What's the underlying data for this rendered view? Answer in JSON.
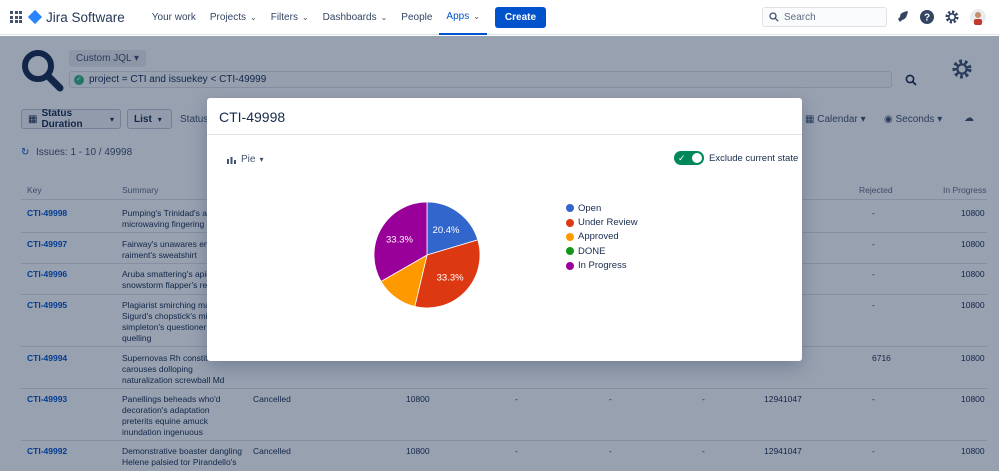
{
  "nav": {
    "brand": "Jira Software",
    "items": [
      {
        "label": "Your work",
        "has_menu": false
      },
      {
        "label": "Projects",
        "has_menu": true
      },
      {
        "label": "Filters",
        "has_menu": true
      },
      {
        "label": "Dashboards",
        "has_menu": true
      },
      {
        "label": "People",
        "has_menu": false
      },
      {
        "label": "Apps",
        "has_menu": true,
        "active": true
      }
    ],
    "create_label": "Create",
    "search_placeholder": "Search",
    "icons": [
      "notifications-icon",
      "help-icon",
      "settings-icon",
      "user-avatar"
    ],
    "accent_color": "#0052CC"
  },
  "background": {
    "jql_mode": "Custom JQL",
    "jql_query": "project = CTI and issuekey < CTI-49999",
    "toolbar": {
      "status_duration": "Status Duration",
      "view_mode": "List",
      "statuses_label": "Statuses",
      "calendar": "Calendar",
      "seconds": "Seconds"
    },
    "issues_count": "Issues: 1 - 10 / 49998",
    "columns": {
      "key": "Key",
      "summary": "Summary",
      "rejected": "Rejected",
      "in_progress": "In Progress"
    },
    "rows": [
      {
        "key": "CTI-49998",
        "summary": "Pumping's Trinidad's artsi microwaving fingering im",
        "status": "",
        "c1": "",
        "c2": "",
        "c3": "",
        "c4": "",
        "c5": "",
        "rejected": "-",
        "in_progress": "10800"
      },
      {
        "key": "CTI-49997",
        "summary": "Fairway's unawares emari tote raiment's sweatshirt",
        "status": "",
        "c1": "",
        "c2": "",
        "c3": "",
        "c4": "",
        "c5": "",
        "rejected": "-",
        "in_progress": "10800"
      },
      {
        "key": "CTI-49996",
        "summary": "Aruba smattering's apient snowstorm flapper's reev",
        "status": "",
        "c1": "",
        "c2": "",
        "c3": "",
        "c4": "",
        "c5": "",
        "rejected": "-",
        "in_progress": "10800"
      },
      {
        "key": "CTI-49995",
        "summary": "Plagiarist smirching maun Sigurd's chopstick's misch simpleton's questioner W quelling",
        "status": "",
        "c1": "",
        "c2": "",
        "c3": "",
        "c4": "",
        "c5": "",
        "rejected": "-",
        "in_progress": "10800"
      },
      {
        "key": "CTI-49994",
        "summary": "Supernovas Rh constituti carouses dolloping naturalization screwball Md",
        "status": "",
        "c1": "",
        "c2": "",
        "c3": "",
        "c4": "",
        "c5": "",
        "rejected": "6716",
        "in_progress": "10800"
      },
      {
        "key": "CTI-49993",
        "summary": "Panellings beheads who'd decoration's adaptation preterits equine amuck inundation ingenuous",
        "status": "Cancelled",
        "c1": "10800",
        "c2": "-",
        "c3": "-",
        "c4": "-",
        "c5": "12941047",
        "rejected": "-",
        "in_progress": "10800"
      },
      {
        "key": "CTI-49992",
        "summary": "Demonstrative boaster dangling Helene palsied tor Pirandello's",
        "status": "Cancelled",
        "c1": "10800",
        "c2": "-",
        "c3": "-",
        "c4": "-",
        "c5": "12941047",
        "rejected": "-",
        "in_progress": "10800"
      }
    ]
  },
  "modal": {
    "title": "CTI-49998",
    "chart_type": "Pie",
    "exclude_label": "Exclude current state",
    "exclude_on": true
  },
  "chart_data": {
    "type": "pie",
    "title": "",
    "series": [
      {
        "name": "Open",
        "value": 20.4,
        "color": "#3366CC"
      },
      {
        "name": "Under Review",
        "value": 33.3,
        "color": "#DC3912"
      },
      {
        "name": "Approved",
        "value": 13.0,
        "color": "#FF9900"
      },
      {
        "name": "DONE",
        "value": 0,
        "color": "#109618"
      },
      {
        "name": "In Progress",
        "value": 33.3,
        "color": "#990099"
      }
    ],
    "slice_labels": [
      "20.4%",
      "33.3%",
      "",
      "",
      "33.3%"
    ],
    "legend_position": "right"
  }
}
